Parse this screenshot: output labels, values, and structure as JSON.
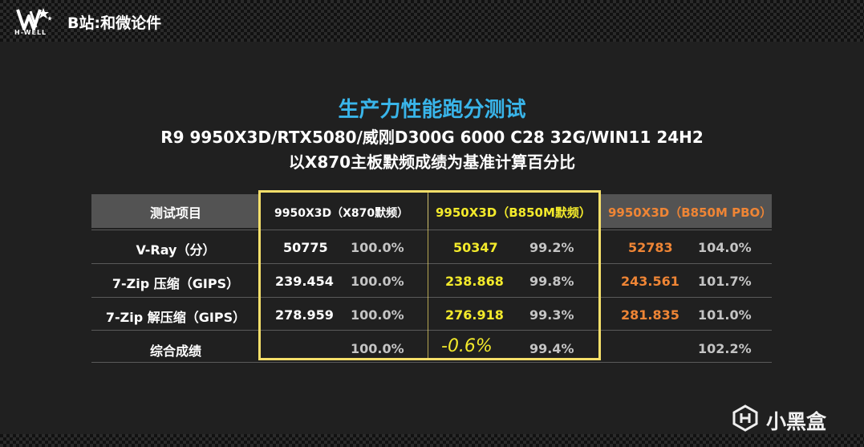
{
  "brand": {
    "logo_text": "H-WELL",
    "channel": "B站:和微论件"
  },
  "titles": {
    "title": "生产力性能跑分测试",
    "subtitle": "R9 9950X3D/RTX5080/威刚D300G 6000 C28 32G/WIN11 24H2",
    "note": "以X870主板默频成绩为基准计算百分比"
  },
  "chart_data": {
    "type": "table",
    "columns": [
      "测试项目",
      "9950X3D（X870默频）",
      "9950X3D（B850M默频）",
      "9950X3D（B850M PBO）"
    ],
    "rows": [
      {
        "item": "V-Ray（分）",
        "x870": "50775",
        "x870_pct": "100.0%",
        "b850": "50347",
        "b850_pct": "99.2%",
        "pbo": "52783",
        "pbo_pct": "104.0%"
      },
      {
        "item": "7-Zip 压缩（GIPS）",
        "x870": "239.454",
        "x870_pct": "100.0%",
        "b850": "238.868",
        "b850_pct": "99.8%",
        "pbo": "243.561",
        "pbo_pct": "101.7%"
      },
      {
        "item": "7-Zip 解压缩（GIPS）",
        "x870": "278.959",
        "x870_pct": "100.0%",
        "b850": "276.918",
        "b850_pct": "99.3%",
        "pbo": "281.835",
        "pbo_pct": "101.0%"
      },
      {
        "item": "综合成绩",
        "x870": "",
        "x870_pct": "100.0%",
        "b850": "",
        "b850_pct": "99.4%",
        "pbo": "",
        "pbo_pct": "102.2%"
      }
    ],
    "annotation": "-0.6%",
    "colors": {
      "x870": "#ffffff",
      "b850": "#f3ea2b",
      "pbo": "#ef8535",
      "highlight_box": "#f6df6a",
      "title": "#39b5ea"
    }
  },
  "watermark": {
    "icon": "xiaoheihe-logo-icon",
    "text": "小黑盒"
  }
}
